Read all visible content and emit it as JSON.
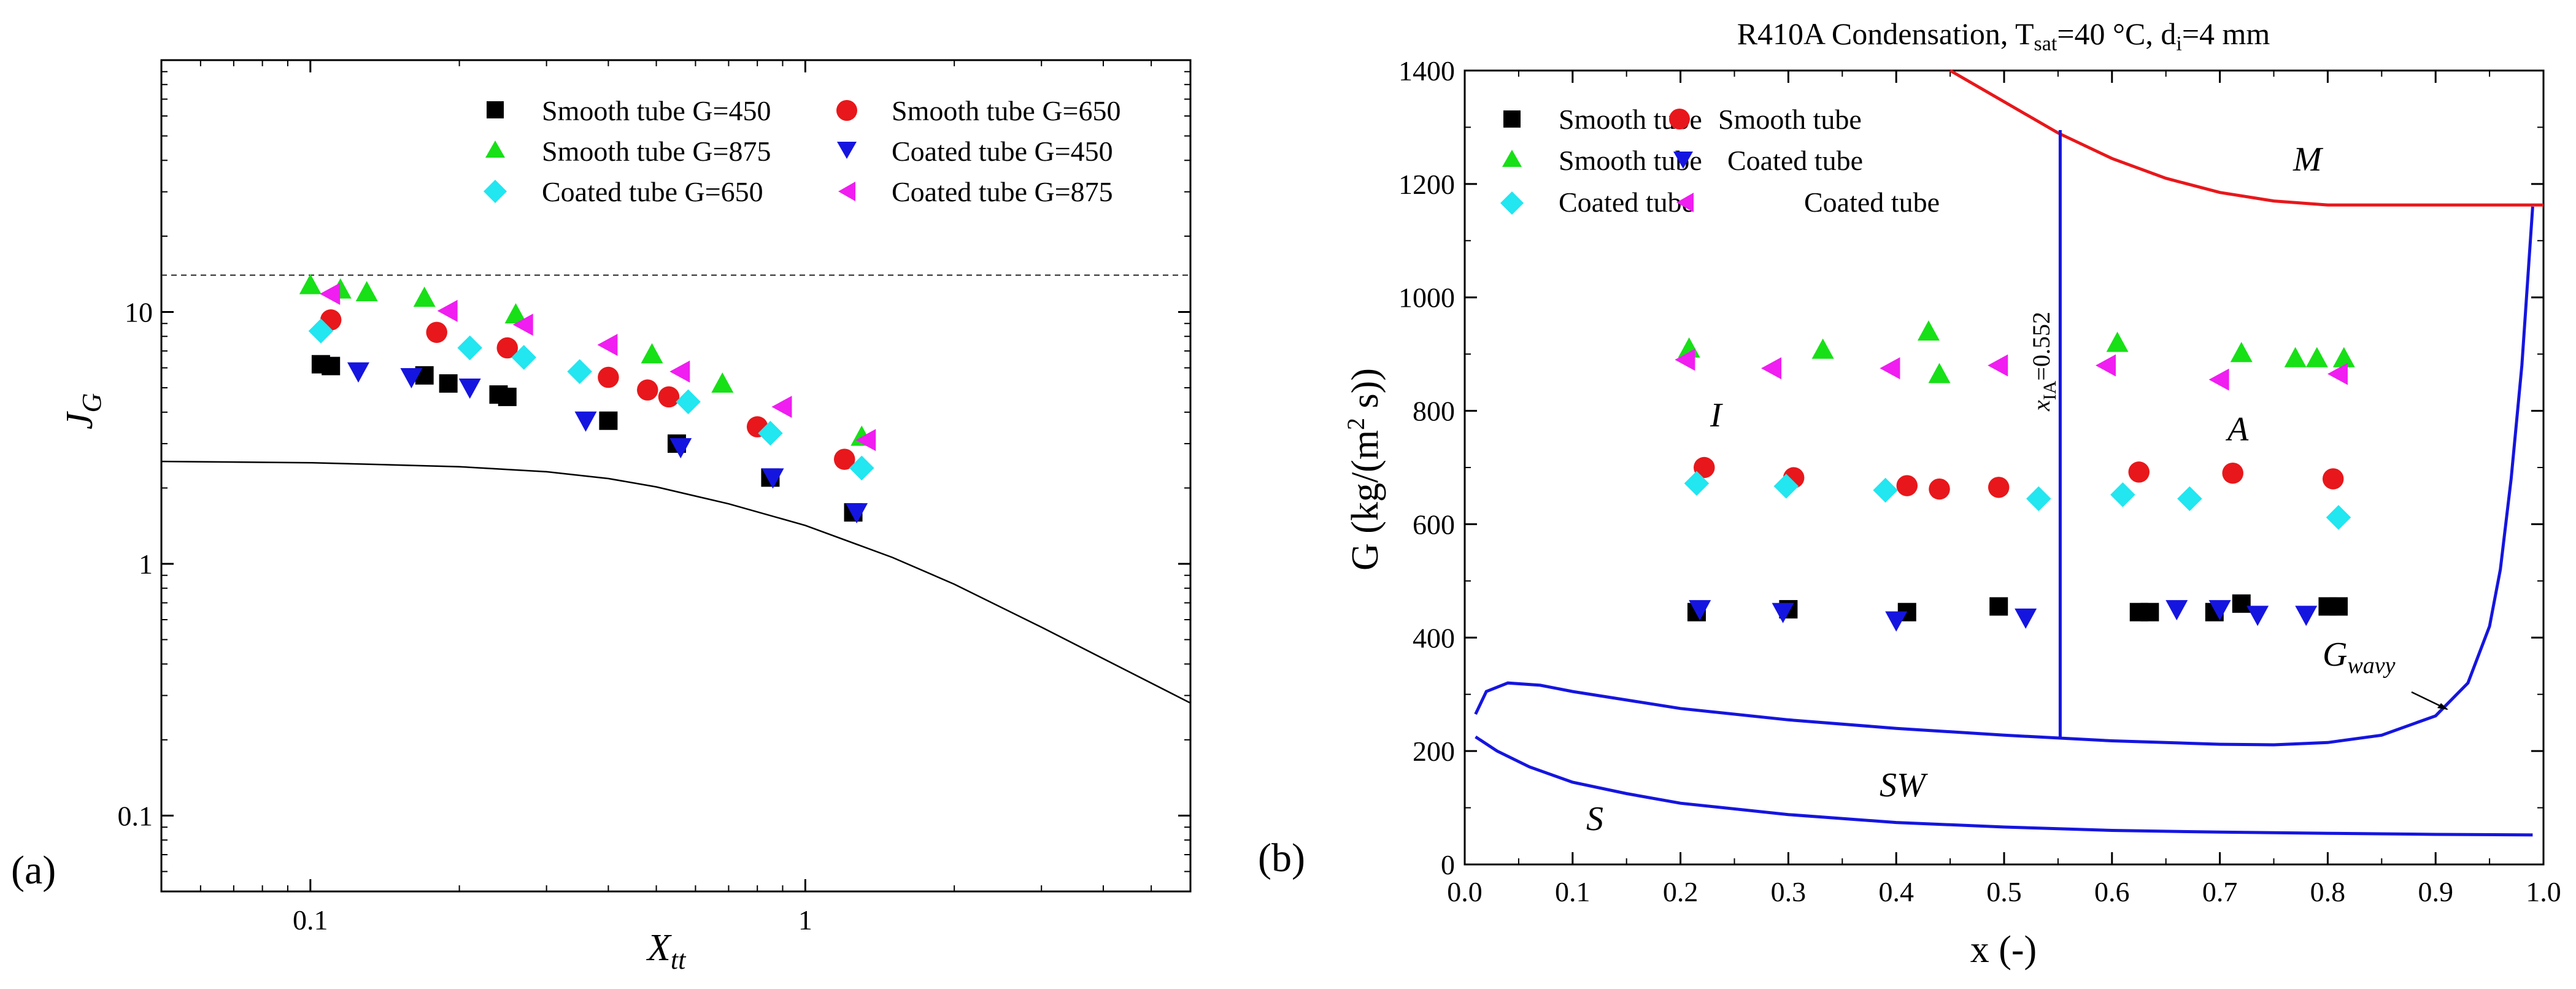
{
  "chart_data": [
    {
      "type": "scatter",
      "panel_label": "(a)",
      "xscale": "log",
      "yscale": "log",
      "xlim": [
        0.05,
        6.0
      ],
      "ylim": [
        0.05,
        100
      ],
      "xlabel": "X",
      "xlabel_sub": "tt",
      "ylabel": "J",
      "ylabel_sub": "G",
      "x_ticks": [
        {
          "v": 0.1,
          "label": "0.1"
        },
        {
          "v": 1,
          "label": "1"
        }
      ],
      "y_ticks": [
        {
          "v": 0.1,
          "label": "0.1"
        },
        {
          "v": 1,
          "label": "1"
        },
        {
          "v": 10,
          "label": "10"
        }
      ],
      "reference_line": {
        "y": 14.0,
        "style": "dashed"
      },
      "boundary_curve": {
        "x": [
          0.05,
          0.1,
          0.2,
          0.3,
          0.4,
          0.5,
          0.7,
          1.0,
          1.5,
          2.0,
          3.0,
          4.0,
          6.0
        ],
        "y": [
          2.55,
          2.52,
          2.43,
          2.32,
          2.18,
          2.02,
          1.73,
          1.42,
          1.06,
          0.83,
          0.56,
          0.42,
          0.28
        ]
      },
      "legend": {
        "placement": "top-right",
        "columns": 2
      },
      "series": [
        {
          "name": "Smooth tube G=450",
          "marker": "square",
          "color": "#000000",
          "x": [
            0.105,
            0.11,
            0.17,
            0.19,
            0.24,
            0.25,
            0.4,
            0.55,
            0.85,
            1.25
          ],
          "y": [
            6.2,
            6.1,
            5.6,
            5.2,
            4.7,
            4.6,
            3.7,
            3.0,
            2.2,
            1.6
          ]
        },
        {
          "name": "Smooth tube G=650",
          "marker": "circle",
          "color": "#e8171b",
          "x": [
            0.11,
            0.18,
            0.25,
            0.4,
            0.48,
            0.53,
            0.8,
            1.2
          ],
          "y": [
            9.3,
            8.3,
            7.2,
            5.5,
            4.9,
            4.6,
            3.5,
            2.6
          ]
        },
        {
          "name": "Smooth tube G=875",
          "marker": "triangle-up",
          "color": "#17e017",
          "x": [
            0.1,
            0.115,
            0.13,
            0.17,
            0.26,
            0.49,
            0.68,
            1.3
          ],
          "y": [
            12.8,
            12.3,
            12.0,
            11.4,
            9.8,
            6.8,
            5.2,
            3.2
          ]
        },
        {
          "name": "Coated tube G=450",
          "marker": "triangle-down",
          "color": "#1515e0",
          "x": [
            0.125,
            0.16,
            0.21,
            0.36,
            0.56,
            0.86,
            1.27
          ],
          "y": [
            5.8,
            5.5,
            5.0,
            3.7,
            2.9,
            2.2,
            1.6
          ]
        },
        {
          "name": "Coated tube G=650",
          "marker": "diamond",
          "color": "#22e6f0",
          "x": [
            0.105,
            0.21,
            0.27,
            0.35,
            0.58,
            0.85,
            1.3
          ],
          "y": [
            8.4,
            7.2,
            6.6,
            5.8,
            4.4,
            3.3,
            2.4
          ]
        },
        {
          "name": "Coated tube G=875",
          "marker": "triangle-left",
          "color": "#f01ef0",
          "x": [
            0.11,
            0.19,
            0.27,
            0.4,
            0.56,
            0.9,
            1.33
          ],
          "y": [
            11.8,
            10.1,
            8.9,
            7.4,
            5.8,
            4.2,
            3.1
          ]
        }
      ]
    },
    {
      "type": "scatter",
      "panel_label": "(b)",
      "title_parts": [
        "R410A Condensation, T",
        "sat",
        "=40 °C, d",
        "i",
        "=4 mm"
      ],
      "xlim": [
        0.0,
        1.0
      ],
      "ylim": [
        0,
        1400
      ],
      "xlabel": "x (-)",
      "ylabel": "G (kg/(m",
      "ylabel_sup": "2",
      "ylabel_end": " s))",
      "x_ticks": [
        0.0,
        0.1,
        0.2,
        0.3,
        0.4,
        0.5,
        0.6,
        0.7,
        0.8,
        0.9,
        1.0
      ],
      "x_tick_labels": [
        "0.0",
        "0.1",
        "0.2",
        "0.3",
        "0.4",
        "0.5",
        "0.6",
        "0.7",
        "0.8",
        "0.9",
        "1.0"
      ],
      "y_ticks": [
        0,
        200,
        400,
        600,
        800,
        1000,
        1200,
        1400
      ],
      "y_tick_labels": [
        "0",
        "200",
        "400",
        "600",
        "800",
        "1000",
        "1200",
        "1400"
      ],
      "legend": {
        "placement": "top-left",
        "columns": 2
      },
      "series": [
        {
          "name": "Smooth tube",
          "marker": "square",
          "color": "#000000",
          "x": [
            0.215,
            0.3,
            0.41,
            0.495,
            0.625,
            0.635,
            0.695,
            0.72,
            0.8,
            0.81
          ],
          "y": [
            445,
            450,
            445,
            455,
            445,
            445,
            445,
            460,
            455,
            455
          ]
        },
        {
          "name": "Smooth tube",
          "marker": "circle",
          "color": "#e8171b",
          "x": [
            0.222,
            0.305,
            0.41,
            0.44,
            0.495,
            0.625,
            0.712,
            0.805
          ],
          "y": [
            700,
            682,
            668,
            662,
            665,
            692,
            690,
            680
          ]
        },
        {
          "name": "Smooth tube",
          "marker": "triangle-up",
          "color": "#17e017",
          "x": [
            0.208,
            0.332,
            0.43,
            0.44,
            0.605,
            0.72,
            0.77,
            0.79,
            0.815
          ],
          "y": [
            910,
            908,
            940,
            865,
            920,
            902,
            893,
            893,
            893
          ]
        },
        {
          "name": "Coated tube",
          "marker": "triangle-down",
          "color": "#1515e0",
          "x": [
            0.218,
            0.295,
            0.4,
            0.52,
            0.66,
            0.7,
            0.735,
            0.78
          ],
          "y": [
            450,
            445,
            430,
            435,
            450,
            450,
            440,
            440
          ]
        },
        {
          "name": "Coated tube",
          "marker": "diamond",
          "color": "#22e6f0",
          "x": [
            0.215,
            0.298,
            0.39,
            0.532,
            0.61,
            0.672,
            0.81
          ],
          "y": [
            672,
            667,
            660,
            645,
            652,
            645,
            612
          ]
        },
        {
          "name": "Coated tube",
          "marker": "triangle-left",
          "color": "#f01ef0",
          "x": [
            0.205,
            0.285,
            0.395,
            0.495,
            0.595,
            0.7,
            0.81
          ],
          "y": [
            890,
            875,
            875,
            880,
            880,
            855,
            865
          ]
        }
      ],
      "curves": [
        {
          "name": "M boundary",
          "color": "#e8171b",
          "x": [
            0.45,
            0.5,
            0.55,
            0.6,
            0.65,
            0.7,
            0.75,
            0.8,
            0.85,
            0.9,
            0.95,
            1.0
          ],
          "y": [
            1400,
            1345,
            1290,
            1245,
            1210,
            1185,
            1170,
            1163,
            1163,
            1163,
            1163,
            1163
          ]
        },
        {
          "name": "G wavy",
          "color": "#1515e0",
          "x": [
            0.01,
            0.02,
            0.04,
            0.07,
            0.1,
            0.2,
            0.3,
            0.4,
            0.5,
            0.6,
            0.7,
            0.75,
            0.8,
            0.85,
            0.9,
            0.93,
            0.95,
            0.96,
            0.97,
            0.98,
            0.99
          ],
          "y": [
            265,
            305,
            320,
            316,
            305,
            275,
            255,
            240,
            228,
            218,
            212,
            211,
            215,
            228,
            262,
            320,
            420,
            520,
            680,
            880,
            1160
          ]
        },
        {
          "name": "S-SW boundary",
          "color": "#1515e0",
          "x": [
            0.01,
            0.03,
            0.06,
            0.1,
            0.15,
            0.2,
            0.3,
            0.4,
            0.5,
            0.6,
            0.7,
            0.8,
            0.9,
            0.99
          ],
          "y": [
            225,
            200,
            172,
            145,
            125,
            108,
            88,
            74,
            66,
            60,
            57,
            55,
            53,
            52
          ]
        },
        {
          "name": "x_IA line",
          "color": "#1515e0",
          "x": [
            0.552,
            0.552
          ],
          "y": [
            225,
            1295
          ]
        }
      ],
      "transition_label": {
        "text": "x",
        "sub": "IA",
        "value": "=0.552"
      },
      "region_labels": {
        "M": "M",
        "I": "I",
        "A": "A",
        "SW": "SW",
        "S": "S",
        "G": "G",
        "G_sub": "wavy"
      }
    }
  ]
}
